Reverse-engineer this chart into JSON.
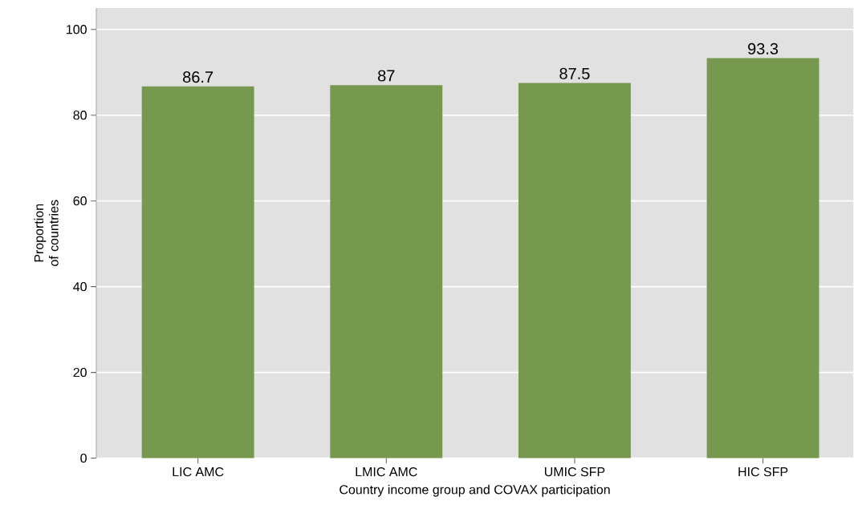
{
  "chart_data": {
    "type": "bar",
    "xlabel": "Country income group and COVAX participation",
    "ylabel": "Proportion of countries",
    "categories": [
      "LIC AMC",
      "LMIC AMC",
      "UMIC SFP",
      "HIC SFP"
    ],
    "values": [
      86.7,
      87,
      87.5,
      93.3
    ],
    "color": "#76994f",
    "ylim": [
      0,
      105
    ],
    "yticks": [
      0,
      20,
      40,
      60,
      80,
      100
    ],
    "grid": "y",
    "data_labels": true
  }
}
